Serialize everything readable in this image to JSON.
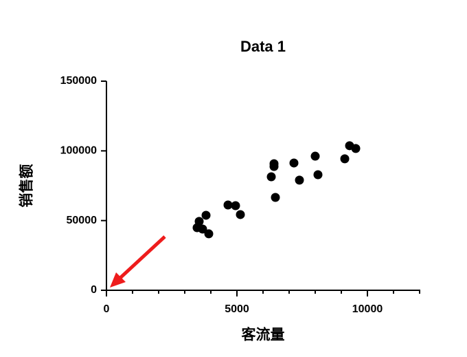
{
  "chart_data": {
    "type": "scatter",
    "title": "Data 1",
    "xlabel": "客流量",
    "ylabel": "销售额",
    "series": [
      {
        "name": "Data 1",
        "color": "#000000",
        "x": [
          3474,
          3553,
          3684,
          3816,
          3921,
          4658,
          4947,
          5132,
          6316,
          6421,
          6421,
          6474,
          7184,
          7395,
          8000,
          8105,
          9132,
          9316,
          9553
        ],
        "values": [
          44900,
          49400,
          43900,
          53800,
          40500,
          61200,
          60700,
          54300,
          81400,
          90800,
          88800,
          66600,
          91300,
          79000,
          96200,
          82900,
          94300,
          103700,
          101700
        ]
      }
    ],
    "xlim": [
      0,
      12000
    ],
    "xticks": [
      0,
      5000,
      10000
    ],
    "xminorticks": [
      1000,
      2000,
      3000,
      4000,
      6000,
      7000,
      8000,
      9000,
      11000,
      12000
    ],
    "ylim": [
      0,
      150000
    ],
    "yticks": [
      0,
      50000,
      100000,
      150000
    ]
  }
}
